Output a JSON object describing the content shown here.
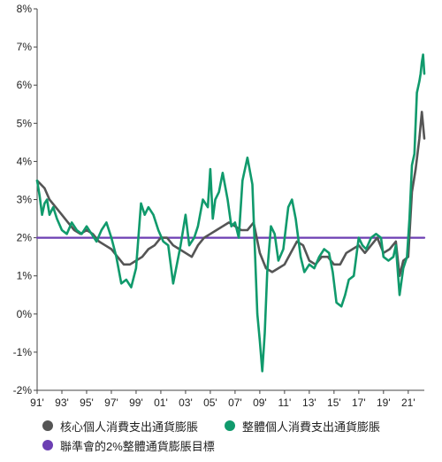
{
  "chart_data": {
    "type": "line",
    "title": "",
    "xlabel": "",
    "ylabel": "",
    "y_tick_labels": [
      "8%",
      "7%",
      "6%",
      "5%",
      "4%",
      "3%",
      "2%",
      "1%",
      "0%",
      "-1%",
      "-2%"
    ],
    "y_ticks": [
      8,
      7,
      6,
      5,
      4,
      3,
      2,
      1,
      0,
      -1,
      -2
    ],
    "ylim": [
      -2,
      8
    ],
    "x_tick_labels": [
      "91'",
      "93'",
      "95'",
      "97'",
      "99'",
      "01'",
      "03'",
      "05'",
      "07'",
      "09'",
      "11'",
      "13'",
      "15'",
      "17'",
      "19'",
      "21'"
    ],
    "x_ticks": [
      1991,
      1993,
      1995,
      1997,
      1999,
      2001,
      2003,
      2005,
      2007,
      2009,
      2011,
      2013,
      2015,
      2017,
      2019,
      2021
    ],
    "xlim": [
      1991,
      2022.3
    ],
    "grid": false,
    "legend_position": "bottom",
    "series": [
      {
        "name": "核心個人消費支出通貨膨脹",
        "color": "#555555",
        "x": [
          1991.0,
          1991.3,
          1991.6,
          1992.0,
          1992.5,
          1993.0,
          1993.5,
          1994.0,
          1994.5,
          1995.0,
          1995.5,
          1996.0,
          1996.5,
          1997.0,
          1997.5,
          1998.0,
          1998.5,
          1999.0,
          1999.5,
          2000.0,
          2000.5,
          2001.0,
          2001.5,
          2002.0,
          2002.5,
          2003.0,
          2003.5,
          2004.0,
          2004.5,
          2005.0,
          2005.5,
          2006.0,
          2006.5,
          2007.0,
          2007.5,
          2008.0,
          2008.5,
          2009.0,
          2009.5,
          2010.0,
          2010.5,
          2011.0,
          2011.5,
          2012.0,
          2012.5,
          2013.0,
          2013.5,
          2014.0,
          2014.5,
          2015.0,
          2015.5,
          2016.0,
          2016.5,
          2017.0,
          2017.5,
          2018.0,
          2018.5,
          2019.0,
          2019.5,
          2020.0,
          2020.3,
          2020.6,
          2021.0,
          2021.3,
          2021.6,
          2021.9,
          2022.1,
          2022.3
        ],
        "values": [
          3.5,
          3.4,
          3.3,
          3.0,
          2.8,
          2.6,
          2.4,
          2.2,
          2.1,
          2.2,
          2.1,
          1.9,
          1.8,
          1.7,
          1.5,
          1.3,
          1.3,
          1.4,
          1.5,
          1.7,
          1.8,
          2.0,
          2.0,
          1.8,
          1.7,
          1.6,
          1.5,
          1.8,
          2.0,
          2.1,
          2.2,
          2.3,
          2.4,
          2.3,
          2.2,
          2.2,
          2.4,
          1.6,
          1.2,
          1.1,
          1.2,
          1.3,
          1.6,
          1.9,
          1.8,
          1.4,
          1.3,
          1.5,
          1.5,
          1.3,
          1.3,
          1.6,
          1.7,
          1.8,
          1.6,
          1.8,
          2.0,
          1.6,
          1.7,
          1.9,
          1.0,
          1.4,
          1.5,
          3.2,
          3.8,
          4.6,
          5.3,
          4.6
        ]
      },
      {
        "name": "整體個人消費支出通貨膨脹",
        "color": "#109a6c",
        "x": [
          1991.0,
          1991.2,
          1991.4,
          1991.6,
          1991.8,
          1992.0,
          1992.3,
          1992.6,
          1993.0,
          1993.4,
          1993.8,
          1994.2,
          1994.6,
          1995.0,
          1995.4,
          1995.8,
          1996.2,
          1996.6,
          1997.0,
          1997.4,
          1997.8,
          1998.2,
          1998.6,
          1999.0,
          1999.4,
          1999.7,
          2000.0,
          2000.4,
          2000.8,
          2001.2,
          2001.6,
          2002.0,
          2002.3,
          2002.6,
          2003.0,
          2003.3,
          2003.7,
          2004.0,
          2004.4,
          2004.8,
          2005.0,
          2005.2,
          2005.4,
          2005.7,
          2006.0,
          2006.4,
          2006.7,
          2007.0,
          2007.3,
          2007.6,
          2008.0,
          2008.4,
          2008.6,
          2008.8,
          2009.0,
          2009.2,
          2009.4,
          2009.6,
          2009.9,
          2010.2,
          2010.5,
          2010.9,
          2011.3,
          2011.6,
          2011.9,
          2012.3,
          2012.6,
          2013.0,
          2013.4,
          2013.8,
          2014.2,
          2014.6,
          2014.9,
          2015.2,
          2015.6,
          2015.9,
          2016.2,
          2016.6,
          2017.0,
          2017.3,
          2017.6,
          2018.0,
          2018.4,
          2018.8,
          2019.0,
          2019.4,
          2019.8,
          2020.0,
          2020.3,
          2020.6,
          2020.9,
          2021.1,
          2021.3,
          2021.5,
          2021.7,
          2021.9,
          2022.0,
          2022.1,
          2022.2,
          2022.3
        ],
        "values": [
          3.5,
          3.1,
          2.6,
          2.9,
          3.0,
          2.6,
          2.8,
          2.5,
          2.2,
          2.1,
          2.4,
          2.2,
          2.1,
          2.3,
          2.1,
          1.9,
          2.2,
          2.4,
          2.0,
          1.5,
          0.8,
          0.9,
          0.7,
          1.2,
          2.9,
          2.6,
          2.8,
          2.6,
          2.2,
          1.9,
          1.8,
          0.8,
          1.3,
          1.8,
          2.6,
          1.8,
          2.0,
          2.3,
          3.0,
          2.8,
          3.8,
          2.5,
          3.0,
          3.2,
          3.7,
          3.0,
          2.3,
          2.4,
          2.0,
          3.5,
          4.1,
          3.4,
          1.7,
          0.0,
          -0.7,
          -1.5,
          -0.5,
          1.1,
          2.3,
          2.1,
          1.4,
          1.7,
          2.8,
          3.0,
          2.5,
          1.5,
          1.1,
          1.3,
          1.2,
          1.5,
          1.7,
          1.6,
          1.1,
          0.3,
          0.2,
          0.5,
          0.9,
          1.0,
          2.0,
          1.8,
          1.7,
          2.0,
          2.1,
          2.0,
          1.5,
          1.4,
          1.5,
          1.8,
          0.5,
          1.2,
          1.5,
          2.5,
          3.9,
          4.2,
          5.8,
          6.1,
          6.3,
          6.6,
          6.8,
          6.3
        ]
      },
      {
        "name": "聯準會的2%整體通貨膨脹目標",
        "color": "#6c3fb3",
        "x": [
          1991.0,
          2022.3
        ],
        "values": [
          2,
          2
        ]
      }
    ]
  },
  "legend": {
    "items": [
      {
        "label": "核心個人消費支出通貨膨脹",
        "color": "#555555"
      },
      {
        "label": "整體個人消費支出通貨膨脹",
        "color": "#109a6c"
      },
      {
        "label": "聯準會的2%整體通貨膨脹目標",
        "color": "#6c3fb3"
      }
    ]
  }
}
